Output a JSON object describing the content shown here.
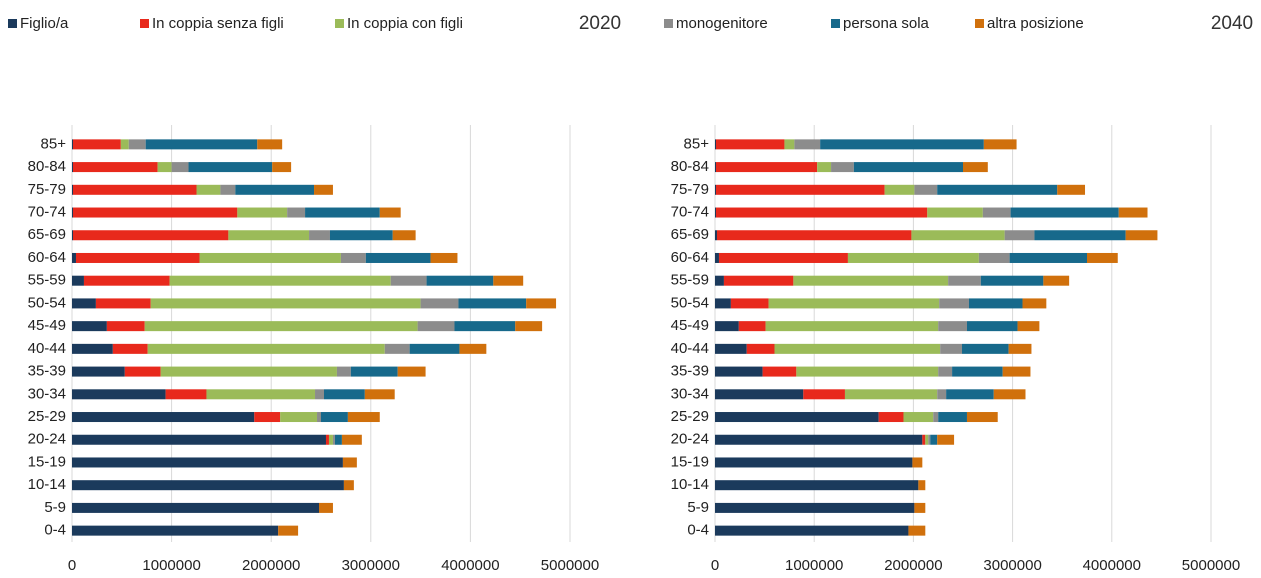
{
  "legend": [
    {
      "name": "Figlio/a",
      "color": "#1b3a5c"
    },
    {
      "name": "In coppia senza figli",
      "color": "#e8291c"
    },
    {
      "name": "In coppia con figli",
      "color": "#9bbb59"
    },
    {
      "name": "monogenitore",
      "color": "#8c8c8c"
    },
    {
      "name": "persona sola",
      "color": "#17698b"
    },
    {
      "name": "altra posizione",
      "color": "#d0700c"
    }
  ],
  "chart_data": [
    {
      "type": "bar",
      "orientation": "horizontal",
      "stacked": true,
      "title": "2020",
      "categories": [
        "85+",
        "80-84",
        "75-79",
        "70-74",
        "65-69",
        "60-64",
        "55-59",
        "50-54",
        "45-49",
        "40-44",
        "35-39",
        "30-34",
        "25-29",
        "20-24",
        "15-19",
        "10-14",
        "5-9",
        "0-4"
      ],
      "xlim": [
        0,
        5000000
      ],
      "xticks": [
        0,
        1000000,
        2000000,
        3000000,
        4000000,
        5000000
      ],
      "grid": true,
      "series": [
        {
          "values": [
            10000,
            10000,
            10000,
            10000,
            10000,
            40000,
            120000,
            240000,
            350000,
            410000,
            530000,
            940000,
            1830000,
            2550000,
            2720000,
            2730000,
            2480000,
            2070000
          ]
        },
        {
          "values": [
            480000,
            850000,
            1240000,
            1650000,
            1560000,
            1240000,
            860000,
            550000,
            380000,
            350000,
            360000,
            410000,
            260000,
            30000,
            0,
            0,
            0,
            0
          ]
        },
        {
          "values": [
            80000,
            140000,
            240000,
            500000,
            810000,
            1420000,
            2220000,
            2710000,
            2740000,
            2380000,
            1770000,
            1090000,
            370000,
            40000,
            0,
            0,
            0,
            0
          ]
        },
        {
          "values": [
            170000,
            170000,
            150000,
            180000,
            210000,
            250000,
            360000,
            380000,
            370000,
            250000,
            140000,
            90000,
            40000,
            20000,
            0,
            0,
            0,
            0
          ]
        },
        {
          "values": [
            1120000,
            840000,
            790000,
            750000,
            630000,
            650000,
            670000,
            680000,
            610000,
            500000,
            470000,
            410000,
            270000,
            70000,
            0,
            0,
            0,
            0
          ]
        },
        {
          "values": [
            250000,
            190000,
            190000,
            210000,
            230000,
            270000,
            300000,
            300000,
            270000,
            270000,
            280000,
            300000,
            320000,
            200000,
            140000,
            100000,
            140000,
            200000
          ]
        }
      ]
    },
    {
      "type": "bar",
      "orientation": "horizontal",
      "stacked": true,
      "title": "2040",
      "categories": [
        "85+",
        "80-84",
        "75-79",
        "70-74",
        "65-69",
        "60-64",
        "55-59",
        "50-54",
        "45-49",
        "40-44",
        "35-39",
        "30-34",
        "25-29",
        "20-24",
        "15-19",
        "10-14",
        "5-9",
        "0-4"
      ],
      "xlim": [
        0,
        5000000
      ],
      "xticks": [
        0,
        1000000,
        2000000,
        3000000,
        4000000,
        5000000
      ],
      "grid": true,
      "series": [
        {
          "values": [
            10000,
            10000,
            10000,
            10000,
            20000,
            40000,
            90000,
            160000,
            240000,
            320000,
            480000,
            890000,
            1650000,
            2090000,
            1990000,
            2050000,
            2010000,
            1950000
          ]
        },
        {
          "values": [
            690000,
            1020000,
            1700000,
            2130000,
            1960000,
            1300000,
            700000,
            380000,
            270000,
            280000,
            340000,
            420000,
            250000,
            30000,
            0,
            0,
            0,
            0
          ]
        },
        {
          "values": [
            100000,
            140000,
            300000,
            560000,
            940000,
            1320000,
            1560000,
            1720000,
            1740000,
            1670000,
            1430000,
            930000,
            300000,
            30000,
            0,
            0,
            0,
            0
          ]
        },
        {
          "values": [
            260000,
            230000,
            230000,
            280000,
            300000,
            310000,
            330000,
            300000,
            290000,
            220000,
            140000,
            90000,
            50000,
            20000,
            0,
            0,
            0,
            0
          ]
        },
        {
          "values": [
            1650000,
            1100000,
            1210000,
            1090000,
            920000,
            780000,
            630000,
            540000,
            510000,
            470000,
            510000,
            480000,
            290000,
            70000,
            0,
            0,
            0,
            0
          ]
        },
        {
          "values": [
            330000,
            250000,
            280000,
            290000,
            320000,
            310000,
            260000,
            240000,
            220000,
            230000,
            280000,
            320000,
            310000,
            170000,
            100000,
            70000,
            110000,
            170000
          ]
        }
      ]
    }
  ]
}
